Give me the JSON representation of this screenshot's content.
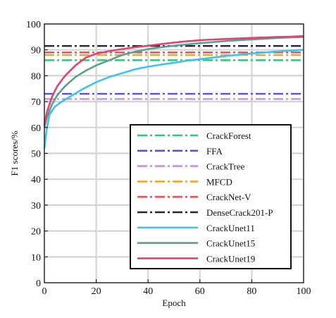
{
  "chart_data": {
    "type": "line",
    "xlabel": "Epoch",
    "ylabel": "F1 scores/%",
    "xlim": [
      0,
      100
    ],
    "ylim": [
      0,
      100
    ],
    "xticks": [
      0,
      20,
      40,
      60,
      80,
      100
    ],
    "yticks": [
      0,
      10,
      20,
      30,
      40,
      50,
      60,
      70,
      80,
      90,
      100
    ],
    "grid": true,
    "legend_position": "bottom-right",
    "baselines": [
      {
        "name": "CrackForest",
        "value": 86,
        "color": "#2ec877",
        "style": "dashdot"
      },
      {
        "name": "FFA",
        "value": 73,
        "color": "#5a4fe0",
        "style": "dashdot"
      },
      {
        "name": "CrackTree",
        "value": 71,
        "color": "#c88ee6",
        "style": "dashdot"
      },
      {
        "name": "MFCD",
        "value": 88,
        "color": "#f2a526",
        "style": "dashdot"
      },
      {
        "name": "CrackNet-V",
        "value": 89,
        "color": "#e85058",
        "style": "dashdot"
      },
      {
        "name": "DenseCrack201-P",
        "value": 91.5,
        "color": "#262636",
        "style": "dashdot"
      }
    ],
    "series": [
      {
        "name": "CrackUnet11",
        "color": "#3cc4ec",
        "x": [
          0,
          1,
          2,
          4,
          6,
          10,
          15,
          20,
          25,
          30,
          35,
          40,
          45,
          50,
          55,
          60,
          65,
          70,
          75,
          80,
          85,
          90,
          95,
          100
        ],
        "y": [
          52,
          60,
          65,
          68,
          69.5,
          72,
          75,
          77.5,
          79.5,
          81,
          82.5,
          83.5,
          84.3,
          85,
          85.8,
          86.4,
          87,
          87.6,
          88.1,
          88.6,
          89,
          89.4,
          89.7,
          90
        ]
      },
      {
        "name": "CrackUnet15",
        "color": "#5aa090",
        "x": [
          0,
          1,
          3,
          5,
          8,
          12,
          16,
          20,
          25,
          30,
          35,
          40,
          45,
          50,
          55,
          60,
          65,
          70,
          75,
          80,
          85,
          90,
          95,
          100
        ],
        "y": [
          60,
          64,
          69,
          72.5,
          76,
          79.5,
          82,
          84,
          86,
          88,
          89.3,
          90.3,
          91,
          91.6,
          92.1,
          92.6,
          93,
          93.4,
          93.7,
          94,
          94.3,
          94.6,
          94.8,
          95
        ]
      },
      {
        "name": "CrackUnet19",
        "color": "#e0446e",
        "x": [
          0,
          1,
          3,
          5,
          8,
          12,
          16,
          20,
          25,
          30,
          35,
          40,
          45,
          50,
          55,
          60,
          65,
          70,
          75,
          80,
          85,
          90,
          95,
          100
        ],
        "y": [
          61,
          66,
          72,
          76,
          80,
          84,
          87,
          88.5,
          89.5,
          90.3,
          91,
          91.6,
          92.2,
          92.8,
          93.3,
          93.7,
          94,
          94.2,
          94.4,
          94.6,
          94.8,
          95,
          95.1,
          95.3
        ]
      }
    ]
  }
}
